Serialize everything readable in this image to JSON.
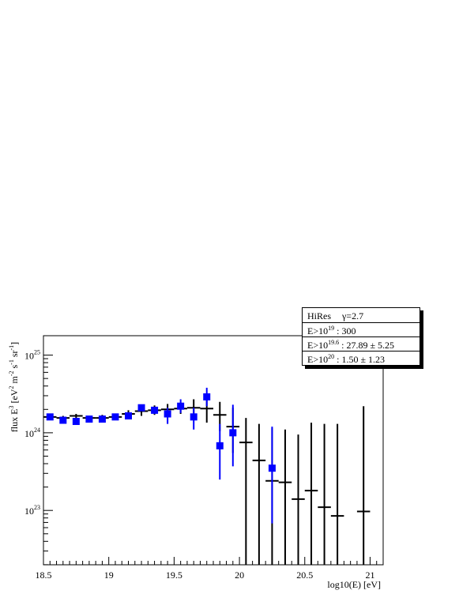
{
  "chart_data": {
    "type": "scatter",
    "xlabel": "log10(E) [eV]",
    "ylabel": "flux E^3 [eV^2 m^-2 s^-1 sr^-1]",
    "xlim": [
      18.5,
      21.1
    ],
    "ylim_log10": [
      22.3,
      25.25
    ],
    "log_y": true,
    "x_ticks": [
      "18.5",
      "19",
      "19.5",
      "20",
      "20.5",
      "21"
    ],
    "y_ticks": [
      {
        "label": "10^23",
        "value": 1e+23
      },
      {
        "label": "10^24",
        "value": 1e+24
      },
      {
        "label": "10^25",
        "value": 1e+25
      }
    ],
    "series": [
      {
        "marker": "cross",
        "color": "#000000",
        "points": [
          {
            "x": 18.55,
            "y": 1.6e+24,
            "lo": 1.5e+24,
            "hi": 1.7e+24
          },
          {
            "x": 18.65,
            "y": 1.55e+24,
            "lo": 1.45e+24,
            "hi": 1.65e+24
          },
          {
            "x": 18.75,
            "y": 1.65e+24,
            "lo": 1.55e+24,
            "hi": 1.75e+24
          },
          {
            "x": 18.85,
            "y": 1.55e+24,
            "lo": 1.45e+24,
            "hi": 1.65e+24
          },
          {
            "x": 18.95,
            "y": 1.55e+24,
            "lo": 1.45e+24,
            "hi": 1.7e+24
          },
          {
            "x": 19.05,
            "y": 1.6e+24,
            "lo": 1.5e+24,
            "hi": 1.75e+24
          },
          {
            "x": 19.15,
            "y": 1.75e+24,
            "lo": 1.6e+24,
            "hi": 1.95e+24
          },
          {
            "x": 19.25,
            "y": 1.9e+24,
            "lo": 1.65e+24,
            "hi": 2.2e+24
          },
          {
            "x": 19.35,
            "y": 1.95e+24,
            "lo": 1.7e+24,
            "hi": 2.25e+24
          },
          {
            "x": 19.45,
            "y": 2e+24,
            "lo": 1.7e+24,
            "hi": 2.35e+24
          },
          {
            "x": 19.55,
            "y": 2.05e+24,
            "lo": 1.75e+24,
            "hi": 2.45e+24
          },
          {
            "x": 19.65,
            "y": 2.1e+24,
            "lo": 1.7e+24,
            "hi": 2.7e+24
          },
          {
            "x": 19.75,
            "y": 2.05e+24,
            "lo": 1.35e+24,
            "hi": 2.9e+24
          },
          {
            "x": 19.85,
            "y": 1.7e+24,
            "lo": 1.05e+24,
            "hi": 2.5e+24
          },
          {
            "x": 19.95,
            "y": 1.2e+24,
            "lo": 5.5e+23,
            "hi": 2.1e+24
          },
          {
            "x": 20.05,
            "y": 7.5e+23,
            "lo": 2e+22,
            "hi": 1.55e+24
          },
          {
            "x": 20.15,
            "y": 4.4e+23,
            "lo": 2e+22,
            "hi": 1.3e+24
          },
          {
            "x": 20.25,
            "y": 2.4e+23,
            "lo": 2e+22,
            "hi": 1.15e+24
          },
          {
            "x": 20.35,
            "y": 2.3e+23,
            "lo": 2e+22,
            "hi": 1.1e+24
          },
          {
            "x": 20.45,
            "y": 1.4e+23,
            "lo": 2e+22,
            "hi": 9.5e+23
          },
          {
            "x": 20.55,
            "y": 1.8e+23,
            "lo": 2e+22,
            "hi": 1.35e+24
          },
          {
            "x": 20.65,
            "y": 1.1e+23,
            "lo": 2e+22,
            "hi": 1.3e+24
          },
          {
            "x": 20.75,
            "y": 8.5e+22,
            "lo": 2e+22,
            "hi": 1.3e+24
          },
          {
            "x": 20.95,
            "y": 9.7e+22,
            "lo": 2e+22,
            "hi": 2.2e+24
          }
        ]
      },
      {
        "marker": "square",
        "color": "#0000ff",
        "points": [
          {
            "x": 18.55,
            "y": 1.6e+24,
            "lo": 1.55e+24,
            "hi": 1.65e+24
          },
          {
            "x": 18.65,
            "y": 1.45e+24,
            "lo": 1.4e+24,
            "hi": 1.5e+24
          },
          {
            "x": 18.75,
            "y": 1.4e+24,
            "lo": 1.35e+24,
            "hi": 1.45e+24
          },
          {
            "x": 18.85,
            "y": 1.5e+24,
            "lo": 1.45e+24,
            "hi": 1.55e+24
          },
          {
            "x": 18.95,
            "y": 1.5e+24,
            "lo": 1.45e+24,
            "hi": 1.55e+24
          },
          {
            "x": 19.05,
            "y": 1.6e+24,
            "lo": 1.52e+24,
            "hi": 1.68e+24
          },
          {
            "x": 19.15,
            "y": 1.65e+24,
            "lo": 1.55e+24,
            "hi": 1.75e+24
          },
          {
            "x": 19.25,
            "y": 2.1e+24,
            "lo": 1.95e+24,
            "hi": 2.25e+24
          },
          {
            "x": 19.35,
            "y": 1.95e+24,
            "lo": 1.75e+24,
            "hi": 2.15e+24
          },
          {
            "x": 19.45,
            "y": 1.75e+24,
            "lo": 1.3e+24,
            "hi": 2.1e+24
          },
          {
            "x": 19.55,
            "y": 2.2e+24,
            "lo": 1.8e+24,
            "hi": 2.7e+24
          },
          {
            "x": 19.65,
            "y": 1.6e+24,
            "lo": 1.1e+24,
            "hi": 2.1e+24
          },
          {
            "x": 19.75,
            "y": 2.9e+24,
            "lo": 2.2e+24,
            "hi": 3.8e+24
          },
          {
            "x": 19.85,
            "y": 6.8e+23,
            "lo": 2.5e+23,
            "hi": 1.3e+24
          },
          {
            "x": 19.95,
            "y": 1e+24,
            "lo": 3.7e+23,
            "hi": 2.3e+24
          },
          {
            "x": 20.25,
            "y": 3.5e+23,
            "lo": 6.8e+22,
            "hi": 1.2e+24
          }
        ]
      }
    ]
  },
  "stat_box": {
    "name": "HiRes",
    "gamma": "γ=2.7",
    "rows": [
      {
        "prefix": "E>10",
        "exp": "19",
        "value": ": 300"
      },
      {
        "prefix": "E>10",
        "exp": "19.6",
        "value": ": 27.89 ± 5.25"
      },
      {
        "prefix": "E>10",
        "exp": "20",
        "value": ": 1.50 ± 1.23"
      }
    ]
  }
}
